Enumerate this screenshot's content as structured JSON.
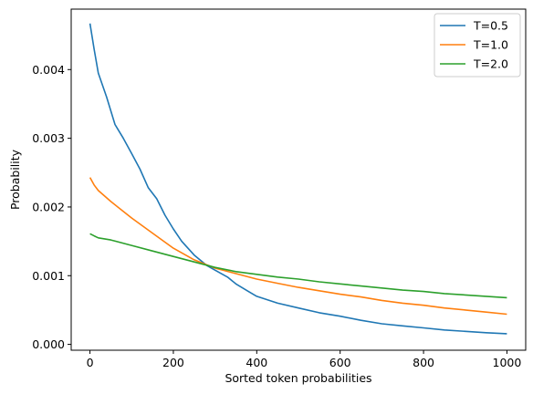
{
  "chart_data": {
    "type": "line",
    "title": "",
    "xlabel": "Sorted token probabilities",
    "ylabel": "Probability",
    "xlim": [
      -45,
      1045
    ],
    "ylim": [
      -8.5e-05,
      0.00488
    ],
    "xticks": [
      0,
      200,
      400,
      600,
      800,
      1000
    ],
    "xtick_labels": [
      "0",
      "200",
      "400",
      "600",
      "800",
      "1000"
    ],
    "yticks": [
      0,
      0.001,
      0.002,
      0.003,
      0.004
    ],
    "ytick_labels": [
      "0.000",
      "0.001",
      "0.002",
      "0.003",
      "0.004"
    ],
    "grid": false,
    "legend_position": "top-right",
    "series": [
      {
        "name": "T=0.5",
        "color": "#1f77b4",
        "x": [
          0,
          10,
          20,
          40,
          60,
          80,
          100,
          120,
          140,
          160,
          180,
          200,
          220,
          250,
          280,
          300,
          330,
          350,
          380,
          400,
          450,
          500,
          550,
          600,
          650,
          700,
          750,
          800,
          850,
          900,
          950,
          1000
        ],
        "y": [
          0.00467,
          0.0043,
          0.00395,
          0.0036,
          0.0032,
          0.003,
          0.00278,
          0.00255,
          0.00228,
          0.00212,
          0.00188,
          0.00168,
          0.0015,
          0.0013,
          0.00115,
          0.00108,
          0.00098,
          0.00088,
          0.00077,
          0.0007,
          0.0006,
          0.00053,
          0.00046,
          0.00041,
          0.00035,
          0.0003,
          0.00027,
          0.00024,
          0.00021,
          0.00019,
          0.00017,
          0.000155
        ]
      },
      {
        "name": "T=1.0",
        "color": "#ff7f0e",
        "x": [
          0,
          10,
          20,
          50,
          100,
          150,
          200,
          250,
          300,
          350,
          400,
          450,
          500,
          550,
          600,
          650,
          700,
          750,
          800,
          850,
          900,
          950,
          1000
        ],
        "y": [
          0.00243,
          0.00232,
          0.00224,
          0.00208,
          0.00184,
          0.00162,
          0.0014,
          0.00123,
          0.00111,
          0.00103,
          0.00095,
          0.00089,
          0.00083,
          0.00078,
          0.00073,
          0.00069,
          0.00064,
          0.0006,
          0.00057,
          0.00053,
          0.0005,
          0.00047,
          0.00044
        ]
      },
      {
        "name": "T=2.0",
        "color": "#2ca02c",
        "x": [
          0,
          10,
          20,
          50,
          100,
          150,
          200,
          250,
          300,
          350,
          400,
          450,
          500,
          550,
          600,
          650,
          700,
          750,
          800,
          850,
          900,
          950,
          1000
        ],
        "y": [
          0.00161,
          0.00158,
          0.00155,
          0.00152,
          0.00144,
          0.00136,
          0.00128,
          0.0012,
          0.00112,
          0.00106,
          0.00102,
          0.00098,
          0.00095,
          0.00091,
          0.00088,
          0.00085,
          0.00082,
          0.00079,
          0.00077,
          0.00074,
          0.00072,
          0.0007,
          0.00068
        ]
      }
    ]
  }
}
